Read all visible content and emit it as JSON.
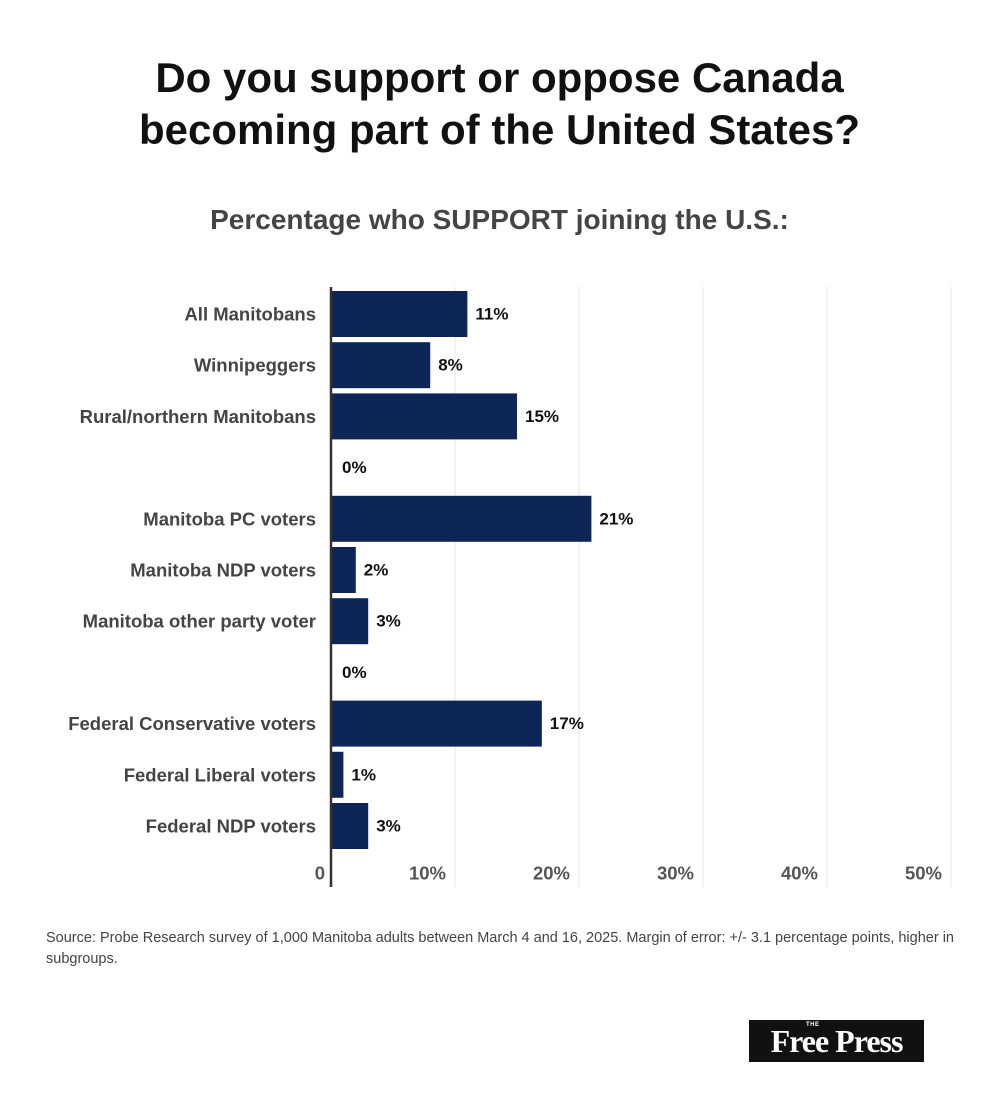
{
  "title_line1": "Do you support or oppose Canada",
  "title_line2": "becoming part of the United States?",
  "source_text": "Source: Probe Research survey of 1,000 Manitoba adults between March 4 and 16, 2025. Margin of error: +/- 3.1 percentage points, higher in subgroups.",
  "logo": {
    "small": "THE",
    "main": "Free Press"
  },
  "colors": {
    "bar": "#0d2657",
    "grid": "#e6e6e6",
    "axis": "#333333",
    "label": "#444444",
    "value": "#111111"
  },
  "chart_data": {
    "type": "bar",
    "orientation": "horizontal",
    "title": "Do you support or oppose Canada becoming part of the United States?",
    "subtitle": "Percentage who SUPPORT joining the U.S.:",
    "categories": [
      "All Manitobans",
      "Winnipeggers",
      "Rural/northern Manitobans",
      "",
      "Manitoba PC voters",
      "Manitoba NDP voters",
      "Manitoba other party voter",
      "",
      "Federal Conservative voters",
      "Federal Liberal voters",
      "Federal NDP voters"
    ],
    "values": [
      11,
      8,
      15,
      0,
      21,
      2,
      3,
      0,
      17,
      1,
      3
    ],
    "value_labels": [
      "11%",
      "8%",
      "15%",
      "0%",
      "21%",
      "2%",
      "3%",
      "0%",
      "17%",
      "1%",
      "3%"
    ],
    "xlim": [
      0,
      50
    ],
    "xticks": [
      0,
      10,
      20,
      30,
      40,
      50
    ],
    "xtick_labels": [
      "0",
      "10%",
      "20%",
      "30%",
      "40%",
      "50%"
    ],
    "grid": true,
    "legend": "none"
  }
}
